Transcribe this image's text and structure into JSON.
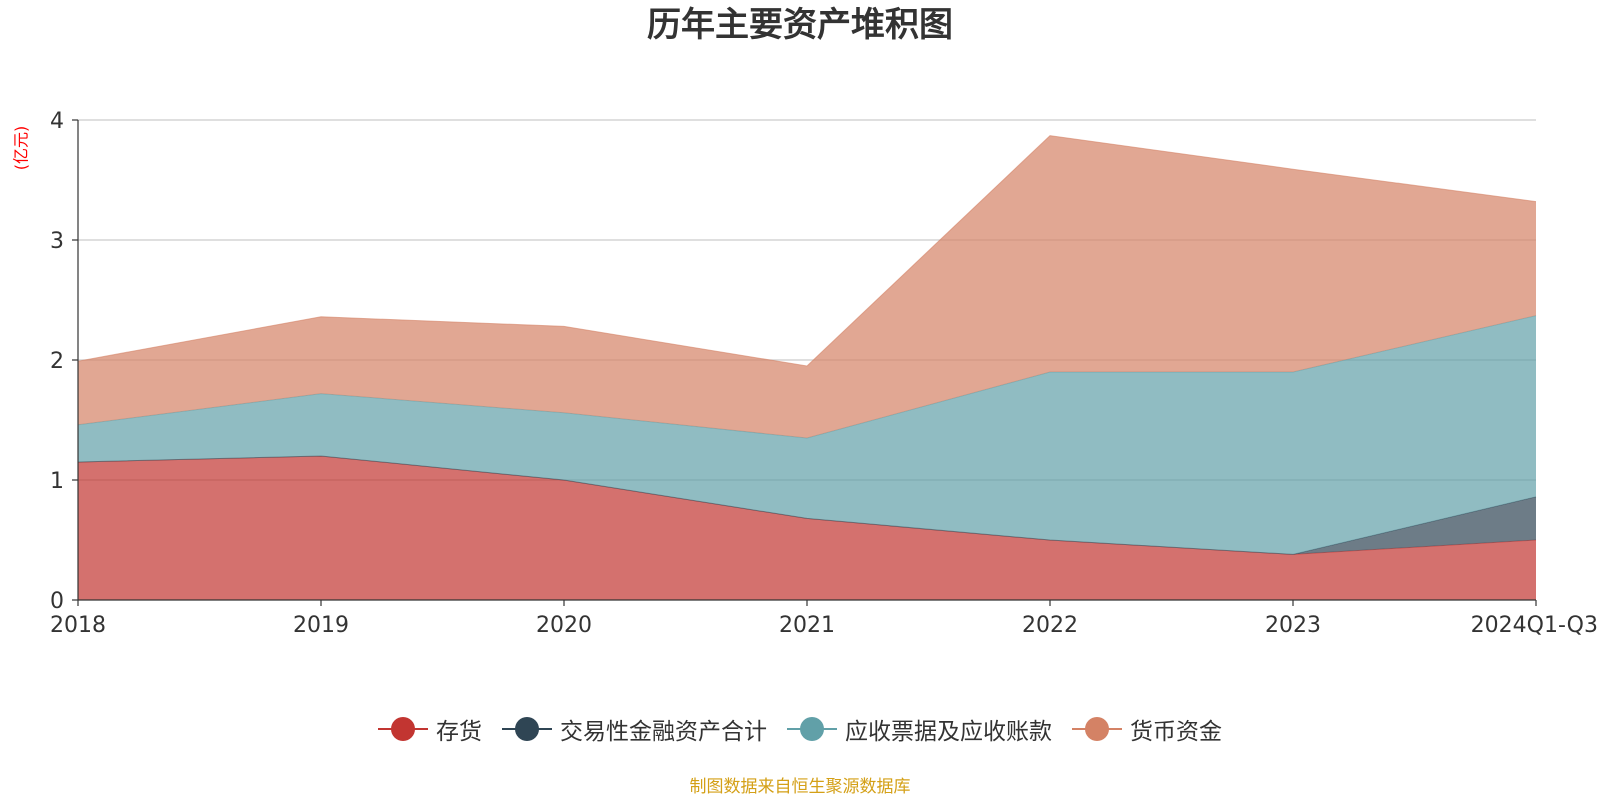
{
  "chart_data": {
    "type": "area",
    "stacked": true,
    "title": "历年主要资产堆积图",
    "ylabel": "(亿元)",
    "xlabel": "",
    "categories": [
      "2018",
      "2019",
      "2020",
      "2021",
      "2022",
      "2023",
      "2024Q1-Q3"
    ],
    "ylim": [
      0,
      4
    ],
    "yticks": [
      0,
      1,
      2,
      3,
      4
    ],
    "grid": true,
    "legend_position": "bottom",
    "series": [
      {
        "name": "存货",
        "color": "#c23531",
        "values": [
          1.15,
          1.2,
          1.0,
          0.68,
          0.5,
          0.38,
          0.5
        ]
      },
      {
        "name": "交易性金融资产合计",
        "color": "#2f4554",
        "values": [
          0,
          0,
          0,
          0,
          0,
          0,
          0.36
        ]
      },
      {
        "name": "应收票据及应收账款",
        "color": "#61a0a8",
        "values": [
          0.31,
          0.52,
          0.56,
          0.67,
          1.4,
          1.52,
          1.51
        ]
      },
      {
        "name": "货币资金",
        "color": "#d48265",
        "values": [
          0.53,
          0.64,
          0.72,
          0.6,
          1.97,
          1.69,
          0.95
        ]
      }
    ]
  },
  "footer": {
    "source": "制图数据来自恒生聚源数据库"
  }
}
